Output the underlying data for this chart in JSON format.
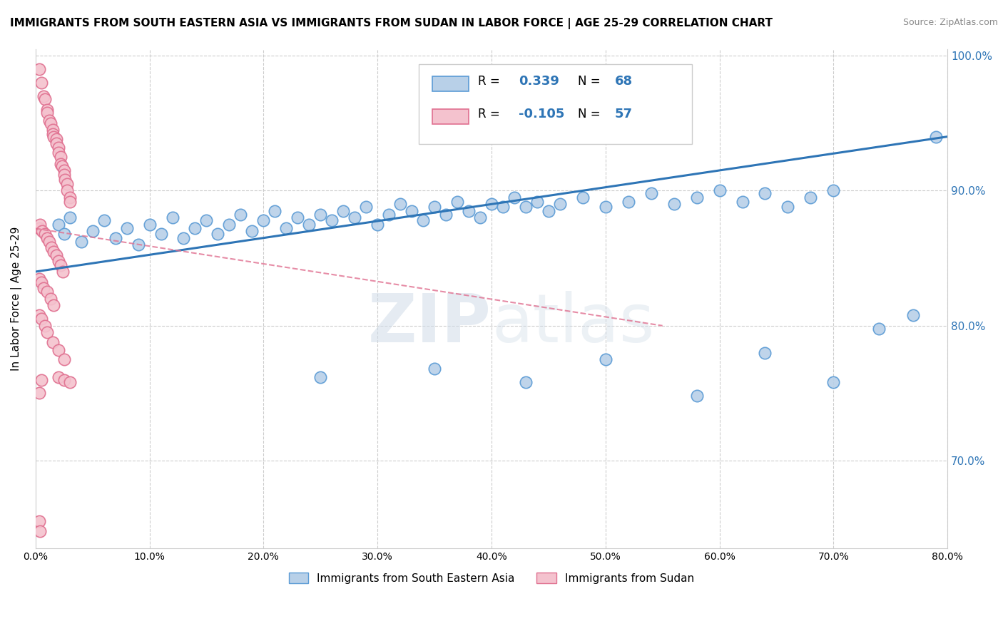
{
  "title": "IMMIGRANTS FROM SOUTH EASTERN ASIA VS IMMIGRANTS FROM SUDAN IN LABOR FORCE | AGE 25-29 CORRELATION CHART",
  "source": "Source: ZipAtlas.com",
  "ylabel": "In Labor Force | Age 25-29",
  "blue_R": 0.339,
  "blue_N": 68,
  "pink_R": -0.105,
  "pink_N": 57,
  "blue_color": "#b8d0e8",
  "blue_edge_color": "#5b9bd5",
  "blue_line_color": "#2e75b6",
  "pink_color": "#f4c2ce",
  "pink_edge_color": "#e07090",
  "pink_line_color": "#e07090",
  "legend_blue_label": "Immigrants from South Eastern Asia",
  "legend_pink_label": "Immigrants from Sudan",
  "blue_scatter_x": [
    0.02,
    0.025,
    0.03,
    0.04,
    0.05,
    0.06,
    0.07,
    0.08,
    0.09,
    0.1,
    0.11,
    0.12,
    0.13,
    0.14,
    0.15,
    0.16,
    0.17,
    0.18,
    0.19,
    0.2,
    0.21,
    0.22,
    0.23,
    0.24,
    0.25,
    0.26,
    0.27,
    0.28,
    0.29,
    0.3,
    0.31,
    0.32,
    0.33,
    0.34,
    0.35,
    0.36,
    0.37,
    0.38,
    0.39,
    0.4,
    0.41,
    0.42,
    0.43,
    0.44,
    0.45,
    0.46,
    0.48,
    0.5,
    0.52,
    0.54,
    0.56,
    0.58,
    0.6,
    0.62,
    0.64,
    0.66,
    0.68,
    0.7,
    0.25,
    0.35,
    0.43,
    0.5,
    0.58,
    0.64,
    0.7,
    0.74,
    0.77,
    0.79
  ],
  "blue_scatter_y": [
    0.875,
    0.868,
    0.88,
    0.862,
    0.87,
    0.878,
    0.865,
    0.872,
    0.86,
    0.875,
    0.868,
    0.88,
    0.865,
    0.872,
    0.878,
    0.868,
    0.875,
    0.882,
    0.87,
    0.878,
    0.885,
    0.872,
    0.88,
    0.875,
    0.882,
    0.878,
    0.885,
    0.88,
    0.888,
    0.875,
    0.882,
    0.89,
    0.885,
    0.878,
    0.888,
    0.882,
    0.892,
    0.885,
    0.88,
    0.89,
    0.888,
    0.895,
    0.888,
    0.892,
    0.885,
    0.89,
    0.895,
    0.888,
    0.892,
    0.898,
    0.89,
    0.895,
    0.9,
    0.892,
    0.898,
    0.888,
    0.895,
    0.9,
    0.762,
    0.768,
    0.758,
    0.775,
    0.748,
    0.78,
    0.758,
    0.798,
    0.808,
    0.94
  ],
  "pink_scatter_x": [
    0.003,
    0.005,
    0.007,
    0.008,
    0.01,
    0.01,
    0.012,
    0.013,
    0.015,
    0.015,
    0.016,
    0.018,
    0.018,
    0.02,
    0.02,
    0.022,
    0.022,
    0.023,
    0.025,
    0.025,
    0.026,
    0.028,
    0.028,
    0.03,
    0.03,
    0.003,
    0.004,
    0.006,
    0.008,
    0.01,
    0.012,
    0.014,
    0.016,
    0.018,
    0.02,
    0.022,
    0.024,
    0.003,
    0.005,
    0.007,
    0.01,
    0.013,
    0.016,
    0.003,
    0.005,
    0.008,
    0.01,
    0.015,
    0.02,
    0.025,
    0.003,
    0.005,
    0.02,
    0.025,
    0.03,
    0.003,
    0.004
  ],
  "pink_scatter_y": [
    0.99,
    0.98,
    0.97,
    0.968,
    0.96,
    0.958,
    0.952,
    0.95,
    0.945,
    0.942,
    0.94,
    0.938,
    0.935,
    0.932,
    0.928,
    0.925,
    0.92,
    0.918,
    0.915,
    0.912,
    0.908,
    0.905,
    0.9,
    0.895,
    0.892,
    0.872,
    0.875,
    0.87,
    0.868,
    0.865,
    0.862,
    0.858,
    0.855,
    0.852,
    0.848,
    0.845,
    0.84,
    0.835,
    0.832,
    0.828,
    0.825,
    0.82,
    0.815,
    0.808,
    0.805,
    0.8,
    0.795,
    0.788,
    0.782,
    0.775,
    0.75,
    0.76,
    0.762,
    0.76,
    0.758,
    0.655,
    0.648
  ],
  "xlim": [
    0.0,
    0.8
  ],
  "ylim": [
    0.635,
    1.005
  ],
  "blue_trend_x": [
    0.0,
    0.8
  ],
  "blue_trend_y": [
    0.84,
    0.94
  ],
  "pink_trend_x": [
    0.0,
    0.55
  ],
  "pink_trend_y": [
    0.872,
    0.8
  ],
  "watermark_zip": "ZIP",
  "watermark_atlas": "atlas",
  "bg_color": "#ffffff",
  "grid_color": "#cccccc",
  "yticks": [
    0.7,
    0.8,
    0.9,
    1.0
  ],
  "xticks": [
    0.0,
    0.1,
    0.2,
    0.3,
    0.4,
    0.5,
    0.6,
    0.7,
    0.8
  ]
}
